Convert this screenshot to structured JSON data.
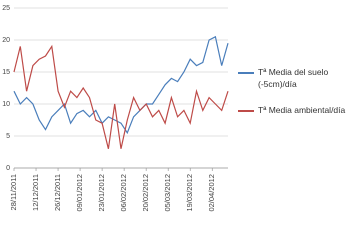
{
  "chart_data": {
    "type": "line",
    "x": [
      "28/11/2011",
      "02/12/2011",
      "06/12/2011",
      "10/12/2011",
      "14/12/2011",
      "18/12/2011",
      "22/12/2011",
      "26/12/2011",
      "30/12/2011",
      "03/01/2012",
      "07/01/2012",
      "11/01/2012",
      "15/01/2012",
      "19/01/2012",
      "23/01/2012",
      "27/01/2012",
      "31/01/2012",
      "04/02/2012",
      "08/02/2012",
      "12/02/2012",
      "16/02/2012",
      "20/02/2012",
      "24/02/2012",
      "28/02/2012",
      "03/03/2012",
      "07/03/2012",
      "11/03/2012",
      "15/03/2012",
      "19/03/2012",
      "23/03/2012",
      "27/03/2012",
      "31/03/2012",
      "04/04/2012",
      "08/04/2012",
      "12/04/2012"
    ],
    "xticks": [
      "28/11/2011",
      "12/12/2011",
      "26/12/2011",
      "09/01/2012",
      "23/01/2012",
      "06/02/2012",
      "20/02/2012",
      "05/03/2012",
      "19/03/2012",
      "02/04/2012"
    ],
    "ylim": [
      0,
      25
    ],
    "yticks": [
      0,
      5,
      10,
      15,
      20,
      25
    ],
    "grid": true,
    "series": [
      {
        "name": "Tª Media del suelo (-5cm)/día",
        "color": "#4a7ebb",
        "values": [
          12,
          10,
          11,
          10,
          7.5,
          6,
          8,
          9,
          10,
          7,
          8.5,
          9,
          8,
          9,
          7,
          8,
          7.5,
          7,
          5.5,
          8,
          9,
          10,
          10,
          11.5,
          13,
          14,
          13.5,
          15,
          17,
          16,
          16.5,
          20,
          20.5,
          16,
          19.5
        ]
      },
      {
        "name": "Tª Media ambiental/día",
        "color": "#be4b48",
        "values": [
          15,
          19,
          12,
          16,
          17,
          17.5,
          19,
          12,
          9.5,
          12,
          11,
          12.5,
          11,
          7.5,
          7,
          3,
          10,
          3,
          7.5,
          11,
          9,
          10,
          8,
          9,
          7,
          11,
          8,
          9,
          7,
          12,
          9,
          11,
          10,
          9,
          12
        ]
      }
    ]
  }
}
